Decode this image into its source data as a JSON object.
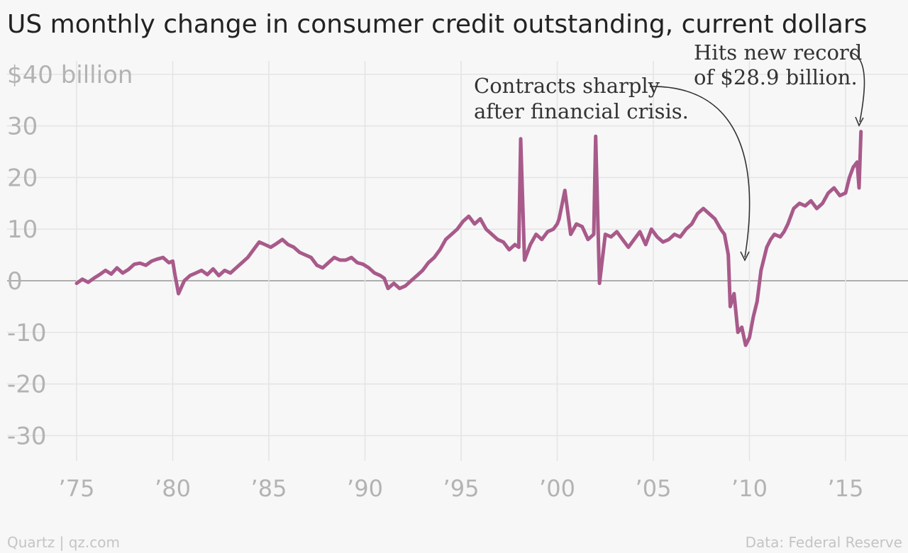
{
  "chart_data": {
    "type": "line",
    "title": "US monthly change in consumer credit outstanding, current dollars",
    "ylabel": "",
    "xlabel": "",
    "ylim": [
      -36,
      44
    ],
    "xlim": [
      1974.0,
      2017.0
    ],
    "grid": true,
    "y_ticks": [
      {
        "value": 40,
        "label": "$40 billion"
      },
      {
        "value": 30,
        "label": "30"
      },
      {
        "value": 20,
        "label": "20"
      },
      {
        "value": 10,
        "label": "10"
      },
      {
        "value": 0,
        "label": "0"
      },
      {
        "value": -10,
        "label": "-10"
      },
      {
        "value": -20,
        "label": "-20"
      },
      {
        "value": -30,
        "label": "-30"
      }
    ],
    "x_ticks": [
      {
        "value": 1975,
        "label": "’75"
      },
      {
        "value": 1980,
        "label": "’80"
      },
      {
        "value": 1985,
        "label": "’85"
      },
      {
        "value": 1990,
        "label": "’90"
      },
      {
        "value": 1995,
        "label": "’95"
      },
      {
        "value": 2000,
        "label": "’00"
      },
      {
        "value": 2005,
        "label": "’05"
      },
      {
        "value": 2010,
        "label": "’10"
      },
      {
        "value": 2015,
        "label": "’15"
      }
    ],
    "series": [
      {
        "color": "#a85a8a",
        "points": [
          [
            1975.0,
            -0.5
          ],
          [
            1975.3,
            0.3
          ],
          [
            1975.6,
            -0.3
          ],
          [
            1975.9,
            0.5
          ],
          [
            1976.2,
            1.2
          ],
          [
            1976.5,
            2.0
          ],
          [
            1976.8,
            1.3
          ],
          [
            1977.1,
            2.5
          ],
          [
            1977.4,
            1.5
          ],
          [
            1977.7,
            2.2
          ],
          [
            1978.0,
            3.2
          ],
          [
            1978.3,
            3.4
          ],
          [
            1978.6,
            3.0
          ],
          [
            1978.9,
            3.8
          ],
          [
            1979.2,
            4.2
          ],
          [
            1979.5,
            4.5
          ],
          [
            1979.8,
            3.5
          ],
          [
            1980.0,
            3.8
          ],
          [
            1980.1,
            1.5
          ],
          [
            1980.3,
            -2.5
          ],
          [
            1980.6,
            0.0
          ],
          [
            1980.9,
            1.0
          ],
          [
            1981.2,
            1.5
          ],
          [
            1981.5,
            2.0
          ],
          [
            1981.8,
            1.2
          ],
          [
            1982.1,
            2.3
          ],
          [
            1982.4,
            1.0
          ],
          [
            1982.7,
            2.0
          ],
          [
            1983.0,
            1.5
          ],
          [
            1983.3,
            2.5
          ],
          [
            1983.6,
            3.5
          ],
          [
            1983.9,
            4.5
          ],
          [
            1984.2,
            6.0
          ],
          [
            1984.5,
            7.5
          ],
          [
            1984.8,
            7.0
          ],
          [
            1985.1,
            6.5
          ],
          [
            1985.4,
            7.2
          ],
          [
            1985.7,
            8.0
          ],
          [
            1986.0,
            7.0
          ],
          [
            1986.3,
            6.5
          ],
          [
            1986.6,
            5.5
          ],
          [
            1986.9,
            5.0
          ],
          [
            1987.2,
            4.5
          ],
          [
            1987.5,
            3.0
          ],
          [
            1987.8,
            2.5
          ],
          [
            1988.1,
            3.5
          ],
          [
            1988.4,
            4.5
          ],
          [
            1988.7,
            4.0
          ],
          [
            1989.0,
            4.0
          ],
          [
            1989.3,
            4.5
          ],
          [
            1989.6,
            3.5
          ],
          [
            1989.9,
            3.2
          ],
          [
            1990.2,
            2.5
          ],
          [
            1990.5,
            1.5
          ],
          [
            1990.8,
            1.0
          ],
          [
            1991.0,
            0.5
          ],
          [
            1991.2,
            -1.5
          ],
          [
            1991.5,
            -0.5
          ],
          [
            1991.8,
            -1.5
          ],
          [
            1992.1,
            -1.0
          ],
          [
            1992.4,
            0.0
          ],
          [
            1992.7,
            1.0
          ],
          [
            1993.0,
            2.0
          ],
          [
            1993.3,
            3.5
          ],
          [
            1993.6,
            4.5
          ],
          [
            1993.9,
            6.0
          ],
          [
            1994.2,
            8.0
          ],
          [
            1994.5,
            9.0
          ],
          [
            1994.8,
            10.0
          ],
          [
            1995.1,
            11.5
          ],
          [
            1995.4,
            12.5
          ],
          [
            1995.7,
            11.0
          ],
          [
            1996.0,
            12.0
          ],
          [
            1996.3,
            10.0
          ],
          [
            1996.6,
            9.0
          ],
          [
            1996.9,
            8.0
          ],
          [
            1997.2,
            7.5
          ],
          [
            1997.5,
            6.0
          ],
          [
            1997.8,
            7.0
          ],
          [
            1998.0,
            6.5
          ],
          [
            1998.1,
            27.5
          ],
          [
            1998.3,
            4.0
          ],
          [
            1998.6,
            7.0
          ],
          [
            1998.9,
            9.0
          ],
          [
            1999.2,
            8.0
          ],
          [
            1999.5,
            9.5
          ],
          [
            1999.8,
            10.0
          ],
          [
            2000.0,
            11.0
          ],
          [
            2000.1,
            12.0
          ],
          [
            2000.4,
            17.5
          ],
          [
            2000.7,
            9.0
          ],
          [
            2001.0,
            11.0
          ],
          [
            2001.3,
            10.5
          ],
          [
            2001.6,
            8.0
          ],
          [
            2001.9,
            9.0
          ],
          [
            2002.0,
            28.0
          ],
          [
            2002.2,
            -0.5
          ],
          [
            2002.5,
            9.0
          ],
          [
            2002.8,
            8.5
          ],
          [
            2003.1,
            9.5
          ],
          [
            2003.4,
            8.0
          ],
          [
            2003.7,
            6.5
          ],
          [
            2004.0,
            8.0
          ],
          [
            2004.3,
            9.5
          ],
          [
            2004.6,
            7.0
          ],
          [
            2004.9,
            10.0
          ],
          [
            2005.2,
            8.5
          ],
          [
            2005.5,
            7.5
          ],
          [
            2005.8,
            8.0
          ],
          [
            2006.1,
            9.0
          ],
          [
            2006.4,
            8.5
          ],
          [
            2006.7,
            10.0
          ],
          [
            2007.0,
            11.0
          ],
          [
            2007.3,
            13.0
          ],
          [
            2007.6,
            14.0
          ],
          [
            2007.9,
            13.0
          ],
          [
            2008.2,
            12.0
          ],
          [
            2008.5,
            10.0
          ],
          [
            2008.7,
            9.0
          ],
          [
            2008.9,
            5.0
          ],
          [
            2009.0,
            -5.0
          ],
          [
            2009.2,
            -2.5
          ],
          [
            2009.4,
            -10.0
          ],
          [
            2009.6,
            -9.0
          ],
          [
            2009.8,
            -12.5
          ],
          [
            2010.0,
            -11.0
          ],
          [
            2010.2,
            -7.0
          ],
          [
            2010.4,
            -4.0
          ],
          [
            2010.6,
            2.0
          ],
          [
            2010.9,
            6.5
          ],
          [
            2011.1,
            8.0
          ],
          [
            2011.3,
            9.0
          ],
          [
            2011.6,
            8.5
          ],
          [
            2011.8,
            9.5
          ],
          [
            2012.0,
            11.0
          ],
          [
            2012.3,
            14.0
          ],
          [
            2012.6,
            15.0
          ],
          [
            2012.9,
            14.5
          ],
          [
            2013.2,
            15.5
          ],
          [
            2013.5,
            14.0
          ],
          [
            2013.8,
            15.0
          ],
          [
            2014.1,
            17.0
          ],
          [
            2014.4,
            18.0
          ],
          [
            2014.7,
            16.5
          ],
          [
            2015.0,
            17.0
          ],
          [
            2015.2,
            20.0
          ],
          [
            2015.4,
            22.0
          ],
          [
            2015.6,
            23.0
          ],
          [
            2015.7,
            18.0
          ],
          [
            2015.8,
            28.9
          ]
        ]
      }
    ],
    "annotations": [
      {
        "lines": [
          "Contracts sharply",
          "after financial crisis."
        ]
      },
      {
        "lines": [
          "Hits new record",
          "of $28.9 billion."
        ]
      }
    ]
  },
  "footer": {
    "left": "Quartz | qz.com",
    "right": "Data: Federal Reserve"
  }
}
